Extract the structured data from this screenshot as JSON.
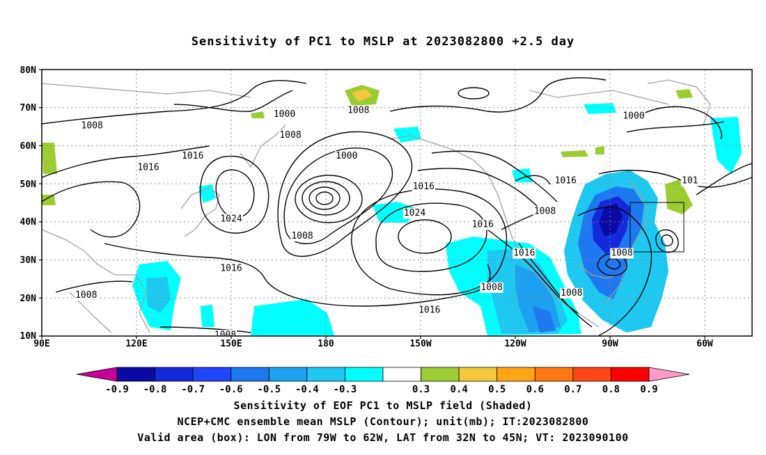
{
  "title": "Sensitivity of PC1 to MSLP at 2023082800 +2.5 day",
  "map": {
    "lat_labels": [
      "80N",
      "70N",
      "60N",
      "50N",
      "40N",
      "30N",
      "20N",
      "10N"
    ],
    "lon_labels": [
      "90E",
      "120E",
      "150E",
      "180",
      "150W",
      "120W",
      "90W",
      "60W"
    ],
    "contour_labels": [
      {
        "text": "1000",
        "lon": 172,
        "lat": 68.5
      },
      {
        "text": "1008",
        "lon": 107,
        "lat": 65.5
      },
      {
        "text": "1008",
        "lon": 197,
        "lat": 69.5
      },
      {
        "text": "1008",
        "lon": 174,
        "lat": 63
      },
      {
        "text": "1016",
        "lon": 141,
        "lat": 57.5
      },
      {
        "text": "1016",
        "lon": 126,
        "lat": 54.5
      },
      {
        "text": "1000",
        "lon": 193,
        "lat": 57.5
      },
      {
        "text": "1016",
        "lon": 219,
        "lat": 49.5
      },
      {
        "text": "1024",
        "lon": 216,
        "lat": 42.5
      },
      {
        "text": "1024",
        "lon": 154,
        "lat": 41
      },
      {
        "text": "1008",
        "lon": 178,
        "lat": 36.5
      },
      {
        "text": "1016",
        "lon": 154,
        "lat": 28
      },
      {
        "text": "1008",
        "lon": 105,
        "lat": 21
      },
      {
        "text": "1008",
        "lon": 152,
        "lat": 10.5
      },
      {
        "text": "1016",
        "lon": 221,
        "lat": 17
      },
      {
        "text": "1008",
        "lon": 242,
        "lat": 23
      },
      {
        "text": "1016",
        "lon": 253,
        "lat": 32
      },
      {
        "text": "1016",
        "lon": 239,
        "lat": 39.5
      },
      {
        "text": "1008",
        "lon": 260,
        "lat": 43
      },
      {
        "text": "1016",
        "lon": 267,
        "lat": 51
      },
      {
        "text": "1008",
        "lon": 269,
        "lat": 21.5
      },
      {
        "text": "1000",
        "lon": 290,
        "lat": 68
      },
      {
        "text": "1008",
        "lon": 286,
        "lat": 32
      },
      {
        "text": "101",
        "lon": 309,
        "lat": 51
      }
    ],
    "valid_box": {
      "lon_min": -79,
      "lon_max": -62,
      "lat_min": 32,
      "lat_max": 45
    }
  },
  "colorbar": {
    "colors": [
      "#c8009a",
      "#0a0aa5",
      "#1428dc",
      "#1e46ff",
      "#1e78f0",
      "#1ea0f0",
      "#1ec8f0",
      "#00ffff",
      "#ffffff",
      "#9bcd32",
      "#f5c83c",
      "#ffa514",
      "#ff7814",
      "#ff4614",
      "#ff0000",
      "#ff9bc8"
    ],
    "labels": [
      "-0.9",
      "-0.8",
      "-0.7",
      "-0.6",
      "-0.5",
      "-0.4",
      "-0.3",
      "0.3",
      "0.4",
      "0.5",
      "0.6",
      "0.7",
      "0.8",
      "0.9"
    ]
  },
  "footer": {
    "line1": "Sensitivity of EOF PC1 to MSLP field (Shaded)",
    "line2": "NCEP+CMC ensemble mean MSLP (Contour); unit(mb); IT:2023082800",
    "line3": "Valid area (box): LON from 79W to 62W, LAT from 32N to 45N; VT: 2023090100"
  }
}
